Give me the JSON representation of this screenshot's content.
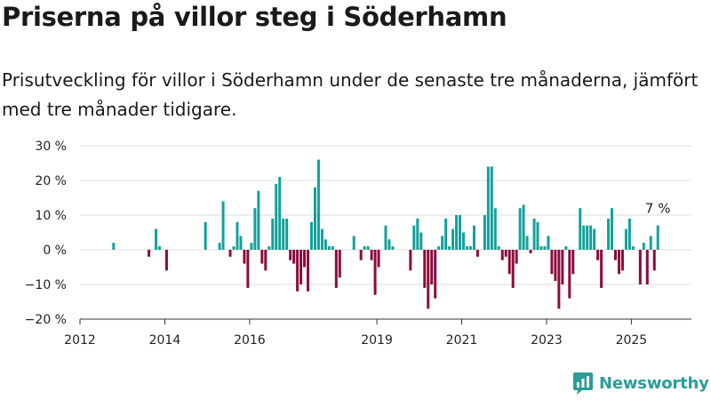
{
  "title": "Priserna på villor steg i Söderhamn",
  "subtitle": "Prisutveckling för villor i Söderhamn under de senaste tre månaderna, jämfört med tre månader tidigare.",
  "brand": {
    "name": "Newsworthy",
    "color": "#2a9d99"
  },
  "colors": {
    "positive": "#12a19a",
    "negative": "#8c0a3c",
    "grid": "#dddddd",
    "axis": "#333333"
  },
  "chart_data": {
    "type": "bar",
    "title": "",
    "xlabel": "",
    "ylabel": "",
    "ylim": [
      -20,
      30
    ],
    "xlim": [
      "2012-01",
      "2026-06"
    ],
    "grid": true,
    "y_ticks": [
      {
        "value": 30,
        "label": "30 %"
      },
      {
        "value": 20,
        "label": "20 %"
      },
      {
        "value": 10,
        "label": "10 %"
      },
      {
        "value": 0,
        "label": "0 %"
      },
      {
        "value": -10,
        "label": "−10 %"
      },
      {
        "value": -20,
        "label": "−20 %"
      }
    ],
    "x_ticks": [
      {
        "date": "2012-01",
        "label": "2012"
      },
      {
        "date": "2014-01",
        "label": "2014"
      },
      {
        "date": "2016-01",
        "label": "2016"
      },
      {
        "date": "2019-01",
        "label": "2019"
      },
      {
        "date": "2021-01",
        "label": "2021"
      },
      {
        "date": "2023-01",
        "label": "2023"
      },
      {
        "date": "2025-01",
        "label": "2025"
      }
    ],
    "last_value_label": "7 %",
    "points": [
      {
        "date": "2012-10",
        "value": 2
      },
      {
        "date": "2013-08",
        "value": -2
      },
      {
        "date": "2013-10",
        "value": 6
      },
      {
        "date": "2013-11",
        "value": 1
      },
      {
        "date": "2014-01",
        "value": -6
      },
      {
        "date": "2014-12",
        "value": 8
      },
      {
        "date": "2015-04",
        "value": 2
      },
      {
        "date": "2015-05",
        "value": 14
      },
      {
        "date": "2015-07",
        "value": -2
      },
      {
        "date": "2015-08",
        "value": 1
      },
      {
        "date": "2015-09",
        "value": 8
      },
      {
        "date": "2015-10",
        "value": 4
      },
      {
        "date": "2015-11",
        "value": -4
      },
      {
        "date": "2015-12",
        "value": -11
      },
      {
        "date": "2016-01",
        "value": 2
      },
      {
        "date": "2016-02",
        "value": 12
      },
      {
        "date": "2016-03",
        "value": 17
      },
      {
        "date": "2016-04",
        "value": -4
      },
      {
        "date": "2016-05",
        "value": -6
      },
      {
        "date": "2016-06",
        "value": 1
      },
      {
        "date": "2016-07",
        "value": 9
      },
      {
        "date": "2016-08",
        "value": 19
      },
      {
        "date": "2016-09",
        "value": 21
      },
      {
        "date": "2016-10",
        "value": 9
      },
      {
        "date": "2016-11",
        "value": 9
      },
      {
        "date": "2016-12",
        "value": -3
      },
      {
        "date": "2017-01",
        "value": -4
      },
      {
        "date": "2017-02",
        "value": -12
      },
      {
        "date": "2017-03",
        "value": -10
      },
      {
        "date": "2017-04",
        "value": -5
      },
      {
        "date": "2017-05",
        "value": -12
      },
      {
        "date": "2017-06",
        "value": 8
      },
      {
        "date": "2017-07",
        "value": 18
      },
      {
        "date": "2017-08",
        "value": 26
      },
      {
        "date": "2017-09",
        "value": 6
      },
      {
        "date": "2017-10",
        "value": 3
      },
      {
        "date": "2017-11",
        "value": 1
      },
      {
        "date": "2017-12",
        "value": 1
      },
      {
        "date": "2018-01",
        "value": -11
      },
      {
        "date": "2018-02",
        "value": -8
      },
      {
        "date": "2018-06",
        "value": 4
      },
      {
        "date": "2018-08",
        "value": -3
      },
      {
        "date": "2018-09",
        "value": 1
      },
      {
        "date": "2018-10",
        "value": 1
      },
      {
        "date": "2018-11",
        "value": -3
      },
      {
        "date": "2018-12",
        "value": -13
      },
      {
        "date": "2019-01",
        "value": -5
      },
      {
        "date": "2019-03",
        "value": 7
      },
      {
        "date": "2019-04",
        "value": 3
      },
      {
        "date": "2019-05",
        "value": 1
      },
      {
        "date": "2019-10",
        "value": -6
      },
      {
        "date": "2019-11",
        "value": 7
      },
      {
        "date": "2019-12",
        "value": 9
      },
      {
        "date": "2020-01",
        "value": 5
      },
      {
        "date": "2020-02",
        "value": -11
      },
      {
        "date": "2020-03",
        "value": -17
      },
      {
        "date": "2020-04",
        "value": -10
      },
      {
        "date": "2020-05",
        "value": -14
      },
      {
        "date": "2020-06",
        "value": 1
      },
      {
        "date": "2020-07",
        "value": 4
      },
      {
        "date": "2020-08",
        "value": 9
      },
      {
        "date": "2020-09",
        "value": 1
      },
      {
        "date": "2020-10",
        "value": 6
      },
      {
        "date": "2020-11",
        "value": 10
      },
      {
        "date": "2020-12",
        "value": 10
      },
      {
        "date": "2021-01",
        "value": 5
      },
      {
        "date": "2021-02",
        "value": 1
      },
      {
        "date": "2021-03",
        "value": 1
      },
      {
        "date": "2021-04",
        "value": 7
      },
      {
        "date": "2021-05",
        "value": -2
      },
      {
        "date": "2021-07",
        "value": 10
      },
      {
        "date": "2021-08",
        "value": 24
      },
      {
        "date": "2021-09",
        "value": 24
      },
      {
        "date": "2021-10",
        "value": 12
      },
      {
        "date": "2021-11",
        "value": 1
      },
      {
        "date": "2021-12",
        "value": -3
      },
      {
        "date": "2022-01",
        "value": -2
      },
      {
        "date": "2022-02",
        "value": -7
      },
      {
        "date": "2022-03",
        "value": -11
      },
      {
        "date": "2022-04",
        "value": -4
      },
      {
        "date": "2022-05",
        "value": 12
      },
      {
        "date": "2022-06",
        "value": 13
      },
      {
        "date": "2022-07",
        "value": 4
      },
      {
        "date": "2022-08",
        "value": -1
      },
      {
        "date": "2022-09",
        "value": 9
      },
      {
        "date": "2022-10",
        "value": 8
      },
      {
        "date": "2022-11",
        "value": 1
      },
      {
        "date": "2022-12",
        "value": 1
      },
      {
        "date": "2023-01",
        "value": 4
      },
      {
        "date": "2023-02",
        "value": -7
      },
      {
        "date": "2023-03",
        "value": -9
      },
      {
        "date": "2023-04",
        "value": -17
      },
      {
        "date": "2023-05",
        "value": -10
      },
      {
        "date": "2023-06",
        "value": 1
      },
      {
        "date": "2023-07",
        "value": -14
      },
      {
        "date": "2023-08",
        "value": -7
      },
      {
        "date": "2023-10",
        "value": 12
      },
      {
        "date": "2023-11",
        "value": 7
      },
      {
        "date": "2023-12",
        "value": 7
      },
      {
        "date": "2024-01",
        "value": 7
      },
      {
        "date": "2024-02",
        "value": 6
      },
      {
        "date": "2024-03",
        "value": -3
      },
      {
        "date": "2024-04",
        "value": -11
      },
      {
        "date": "2024-06",
        "value": 9
      },
      {
        "date": "2024-07",
        "value": 12
      },
      {
        "date": "2024-08",
        "value": -3
      },
      {
        "date": "2024-09",
        "value": -7
      },
      {
        "date": "2024-10",
        "value": -6
      },
      {
        "date": "2024-11",
        "value": 6
      },
      {
        "date": "2024-12",
        "value": 9
      },
      {
        "date": "2025-01",
        "value": 1
      },
      {
        "date": "2025-03",
        "value": -10
      },
      {
        "date": "2025-04",
        "value": 2
      },
      {
        "date": "2025-05",
        "value": -10
      },
      {
        "date": "2025-06",
        "value": 4
      },
      {
        "date": "2025-07",
        "value": -6
      },
      {
        "date": "2025-08",
        "value": 7
      }
    ]
  }
}
